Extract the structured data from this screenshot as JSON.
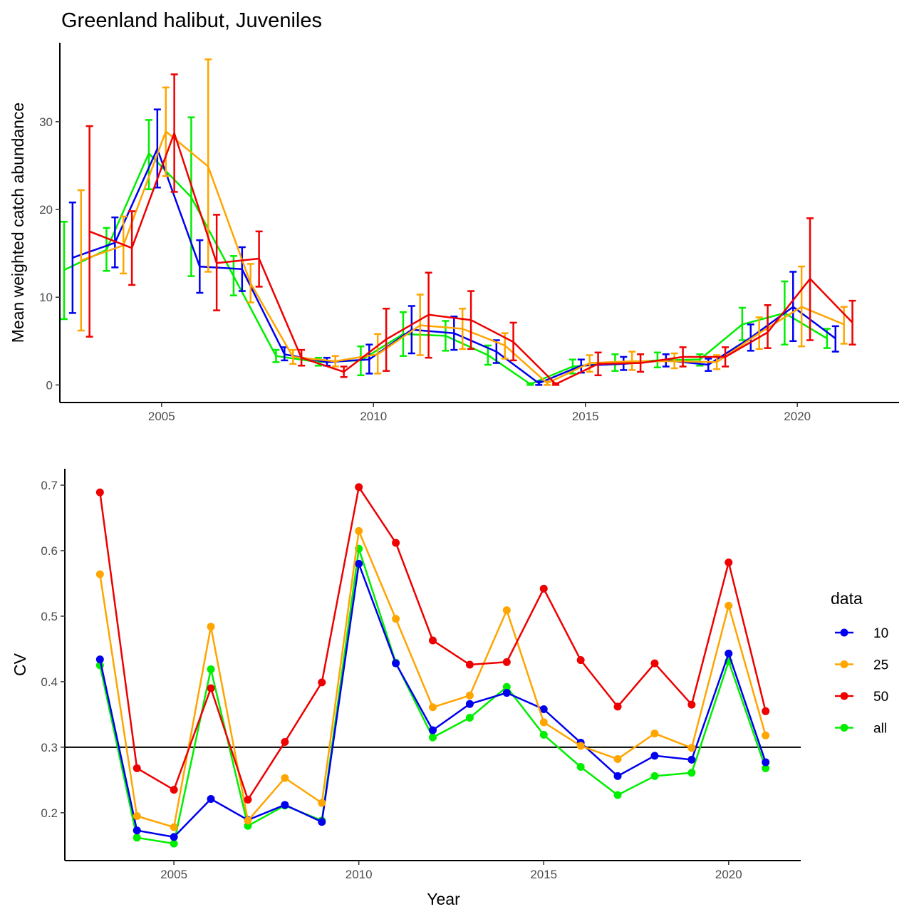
{
  "chart_data": [
    {
      "type": "line",
      "title": "Greenland halibut, Juveniles",
      "xlabel": "",
      "ylabel": "Mean weighted catch abundance",
      "xlim": [
        2002.6,
        2022.4
      ],
      "ylim": [
        -2,
        39
      ],
      "x_ticks": [
        2005,
        2010,
        2015,
        2020
      ],
      "y_ticks": [
        0,
        10,
        20,
        30
      ],
      "grid": false,
      "error_bars": true,
      "x": [
        2003,
        2004,
        2005,
        2006,
        2007,
        2008,
        2009,
        2010,
        2011,
        2012,
        2013,
        2014,
        2015,
        2016,
        2017,
        2018,
        2019,
        2020,
        2021
      ],
      "series": [
        {
          "name": "all",
          "color": "#00EE00",
          "dodge": -0.3,
          "values": [
            13.1,
            15.4,
            26.4,
            21.4,
            12.4,
            3.3,
            2.6,
            2.8,
            5.8,
            5.6,
            3.4,
            0.1,
            2.1,
            2.5,
            2.8,
            2.9,
            6.9,
            8.2,
            5.3
          ],
          "lower": [
            7.5,
            13.0,
            22.3,
            12.4,
            10.2,
            2.6,
            2.2,
            1.1,
            3.3,
            3.9,
            2.3,
            0.0,
            1.3,
            1.6,
            2.0,
            2.2,
            5.1,
            4.6,
            4.2
          ],
          "upper": [
            18.6,
            17.9,
            30.2,
            30.5,
            14.7,
            4.0,
            3.1,
            4.4,
            8.3,
            7.3,
            4.5,
            0.2,
            2.9,
            3.5,
            3.7,
            3.5,
            8.8,
            11.8,
            6.4
          ]
        },
        {
          "name": "10",
          "color": "#0000EE",
          "dodge": -0.1,
          "values": [
            14.5,
            16.2,
            26.9,
            13.5,
            13.2,
            3.5,
            2.6,
            2.9,
            6.3,
            5.9,
            3.8,
            0.2,
            2.2,
            2.4,
            2.8,
            2.3,
            5.4,
            8.9,
            5.3
          ],
          "lower": [
            8.2,
            13.4,
            22.5,
            10.5,
            10.7,
            2.8,
            2.2,
            1.3,
            3.6,
            4.0,
            2.5,
            0.0,
            1.4,
            1.7,
            2.1,
            1.6,
            3.9,
            5.0,
            3.8
          ],
          "upper": [
            20.8,
            19.1,
            31.4,
            16.5,
            15.7,
            4.3,
            3.1,
            4.6,
            9.0,
            7.8,
            5.1,
            0.4,
            2.9,
            3.2,
            3.5,
            3.0,
            6.9,
            12.9,
            6.7
          ]
        },
        {
          "name": "25",
          "color": "#FFA500",
          "dodge": 0.1,
          "values": [
            14.2,
            15.9,
            28.9,
            24.9,
            11.6,
            3.2,
            2.7,
            3.5,
            6.8,
            6.4,
            4.5,
            0.2,
            2.5,
            2.7,
            2.7,
            2.6,
            5.9,
            8.9,
            6.9
          ],
          "lower": [
            6.2,
            12.7,
            23.8,
            12.9,
            9.4,
            2.4,
            2.1,
            1.3,
            3.4,
            4.1,
            3.0,
            0.0,
            1.5,
            1.7,
            1.9,
            1.8,
            4.1,
            4.4,
            4.7
          ],
          "upper": [
            22.2,
            19.2,
            33.9,
            37.1,
            13.8,
            4.0,
            3.3,
            5.8,
            10.3,
            8.7,
            5.9,
            0.4,
            3.4,
            3.8,
            3.6,
            3.4,
            7.7,
            13.5,
            8.9
          ]
        },
        {
          "name": "50",
          "color": "#EE0000",
          "dodge": 0.3,
          "values": [
            17.5,
            15.6,
            28.7,
            13.9,
            14.4,
            3.1,
            1.5,
            5.2,
            8.0,
            7.4,
            4.9,
            0.1,
            2.4,
            2.5,
            3.2,
            3.2,
            6.0,
            12.1,
            7.1
          ],
          "lower": [
            5.5,
            11.4,
            22.0,
            8.5,
            11.2,
            2.2,
            0.9,
            1.6,
            3.1,
            4.1,
            2.8,
            0.0,
            1.1,
            1.5,
            2.1,
            2.1,
            4.2,
            5.1,
            4.6
          ],
          "upper": [
            29.5,
            19.8,
            35.4,
            19.4,
            17.5,
            4.0,
            2.1,
            8.7,
            12.8,
            10.7,
            7.1,
            0.2,
            3.7,
            3.5,
            4.3,
            4.3,
            9.1,
            19.0,
            9.6
          ]
        }
      ]
    },
    {
      "type": "line",
      "title": "",
      "xlabel": "Year",
      "ylabel": "CV",
      "xlim": [
        2002.05,
        2021.95
      ],
      "ylim": [
        0.127,
        0.725
      ],
      "x_ticks": [
        2005,
        2010,
        2015,
        2020
      ],
      "y_ticks": [
        0.2,
        0.3,
        0.4,
        0.5,
        0.6,
        0.7
      ],
      "y_tick_labels": [
        "0.2",
        "0.3",
        "0.4",
        "0.5",
        "0.6",
        "0.7"
      ],
      "grid": false,
      "markers": true,
      "hline": 0.3,
      "legend": {
        "title": "data",
        "position": "right",
        "entries": [
          "10",
          "25",
          "50",
          "all"
        ]
      },
      "x": [
        2003,
        2004,
        2005,
        2006,
        2007,
        2008,
        2009,
        2010,
        2011,
        2012,
        2013,
        2014,
        2015,
        2016,
        2017,
        2018,
        2019,
        2020,
        2021
      ],
      "series": [
        {
          "name": "all",
          "color": "#00EE00",
          "values": [
            0.425,
            0.162,
            0.153,
            0.419,
            0.18,
            0.211,
            0.188,
            0.603,
            0.429,
            0.315,
            0.345,
            0.392,
            0.319,
            0.27,
            0.227,
            0.256,
            0.261,
            0.431,
            0.268
          ]
        },
        {
          "name": "10",
          "color": "#0000EE",
          "values": [
            0.434,
            0.173,
            0.163,
            0.221,
            0.189,
            0.212,
            0.186,
            0.58,
            0.428,
            0.326,
            0.366,
            0.383,
            0.358,
            0.307,
            0.256,
            0.287,
            0.281,
            0.443,
            0.277
          ]
        },
        {
          "name": "25",
          "color": "#FFA500",
          "values": [
            0.564,
            0.195,
            0.178,
            0.484,
            0.188,
            0.253,
            0.215,
            0.63,
            0.496,
            0.361,
            0.379,
            0.509,
            0.338,
            0.302,
            0.282,
            0.321,
            0.299,
            0.516,
            0.318
          ]
        },
        {
          "name": "50",
          "color": "#EE0000",
          "values": [
            0.689,
            0.268,
            0.235,
            0.39,
            0.22,
            0.308,
            0.399,
            0.697,
            0.612,
            0.463,
            0.426,
            0.43,
            0.542,
            0.433,
            0.362,
            0.428,
            0.365,
            0.582,
            0.355
          ]
        }
      ]
    }
  ]
}
